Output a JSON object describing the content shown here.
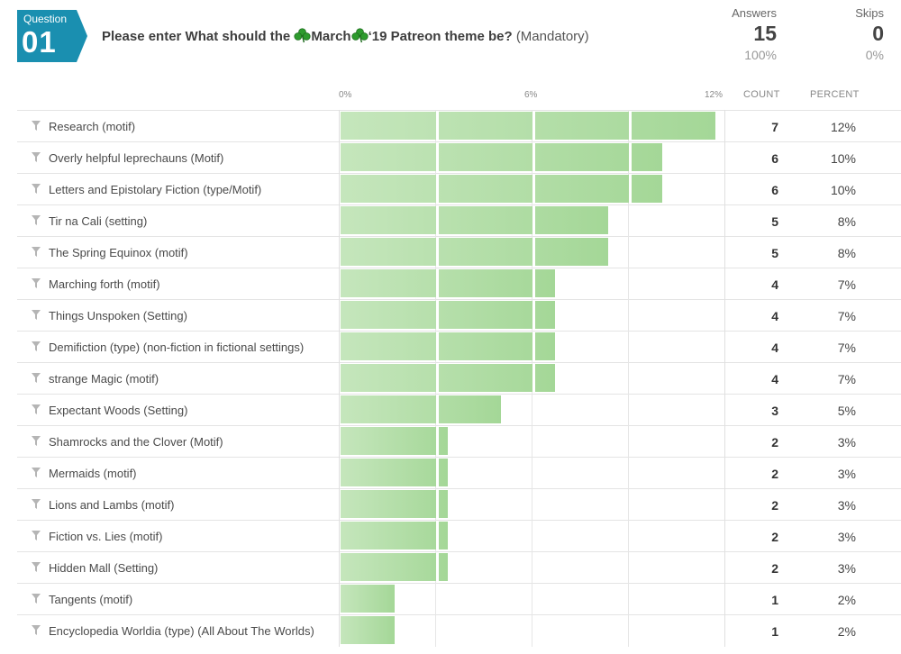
{
  "question": {
    "label": "Question",
    "number": "01",
    "title_pre": "Please enter What should the ",
    "title_month": "March",
    "title_post": "‘19 Patreon theme be?",
    "title_mandatory": "(Mandatory)",
    "badge_color": "#1a8fb0",
    "clover_icon": "shamrock-icon"
  },
  "stats": {
    "answers_label": "Answers",
    "answers_value": "15",
    "answers_pct": "100%",
    "skips_label": "Skips",
    "skips_value": "0",
    "skips_pct": "0%"
  },
  "headers": {
    "count": "COUNT",
    "percent": "PERCENT"
  },
  "chart_data": {
    "type": "bar",
    "orientation": "horizontal",
    "ticks": [
      "0%",
      "6%",
      "12%"
    ],
    "xlim": [
      0,
      12
    ],
    "bar_color": "#a8d99b",
    "categories": [
      "Research (motif)",
      "Overly helpful leprechauns (Motif)",
      "Letters and Epistolary Fiction (type/Motif)",
      "Tir na Cali (setting)",
      "The Spring Equinox (motif)",
      "Marching forth (motif)",
      "Things Unspoken (Setting)",
      "Demifiction (type) (non-fiction in fictional settings)",
      "strange Magic (motif)",
      "Expectant Woods (Setting)",
      "Shamrocks and the Clover (Motif)",
      "Mermaids (motif)",
      "Lions and Lambs (motif)",
      "Fiction vs. Lies (motif)",
      "Hidden Mall (Setting)",
      "Tangents (motif)",
      "Encyclopedia Worldia (type) (All About The Worlds)"
    ],
    "counts": [
      "7",
      "6",
      "6",
      "5",
      "5",
      "4",
      "4",
      "4",
      "4",
      "3",
      "2",
      "2",
      "2",
      "2",
      "2",
      "1",
      "1"
    ],
    "percents": [
      "12%",
      "10%",
      "10%",
      "8%",
      "8%",
      "7%",
      "7%",
      "7%",
      "7%",
      "5%",
      "3%",
      "3%",
      "3%",
      "3%",
      "3%",
      "2%",
      "2%"
    ],
    "values": [
      11.67,
      10.0,
      10.0,
      8.33,
      8.33,
      6.67,
      6.67,
      6.67,
      6.67,
      5.0,
      3.33,
      3.33,
      3.33,
      3.33,
      3.33,
      1.67,
      1.67
    ]
  }
}
